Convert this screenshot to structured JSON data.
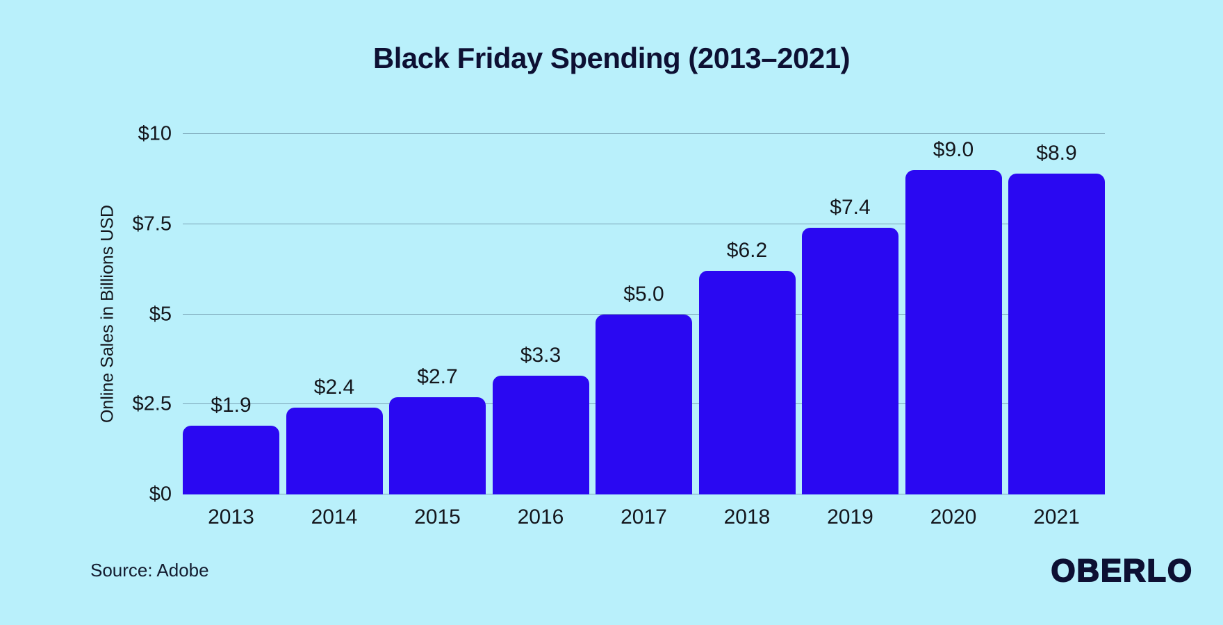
{
  "page": {
    "title": "Black Friday Spending (2013–2021)",
    "source": "Source: Adobe",
    "brand": "OBERLO",
    "background": "#b9f0fb"
  },
  "colors": {
    "bar": "#2a08f2",
    "title_text": "#0d1033",
    "axis_text": "#14161c",
    "gridline": "rgba(30,55,80,0.42)"
  },
  "chart_data": {
    "type": "bar",
    "title": "Black Friday Spending (2013–2021)",
    "categories": [
      "2013",
      "2014",
      "2015",
      "2016",
      "2017",
      "2018",
      "2019",
      "2020",
      "2021"
    ],
    "values": [
      1.9,
      2.4,
      2.7,
      3.3,
      5.0,
      6.2,
      7.4,
      9.0,
      8.9
    ],
    "value_labels": [
      "$1.9",
      "$2.4",
      "$2.7",
      "$3.3",
      "$5.0",
      "$6.2",
      "$7.4",
      "$9.0",
      "$8.9"
    ],
    "xlabel": "",
    "ylabel": "Online Sales in Billions USD",
    "ylim": [
      0,
      10
    ],
    "y_ticks": [
      {
        "value": 10,
        "label": "$10"
      },
      {
        "value": 7.5,
        "label": "$7.5"
      },
      {
        "value": 5,
        "label": "$5"
      },
      {
        "value": 2.5,
        "label": "$2.5"
      },
      {
        "value": 0,
        "label": "$0"
      }
    ],
    "grid": true,
    "legend": false,
    "source": "Source: Adobe"
  }
}
